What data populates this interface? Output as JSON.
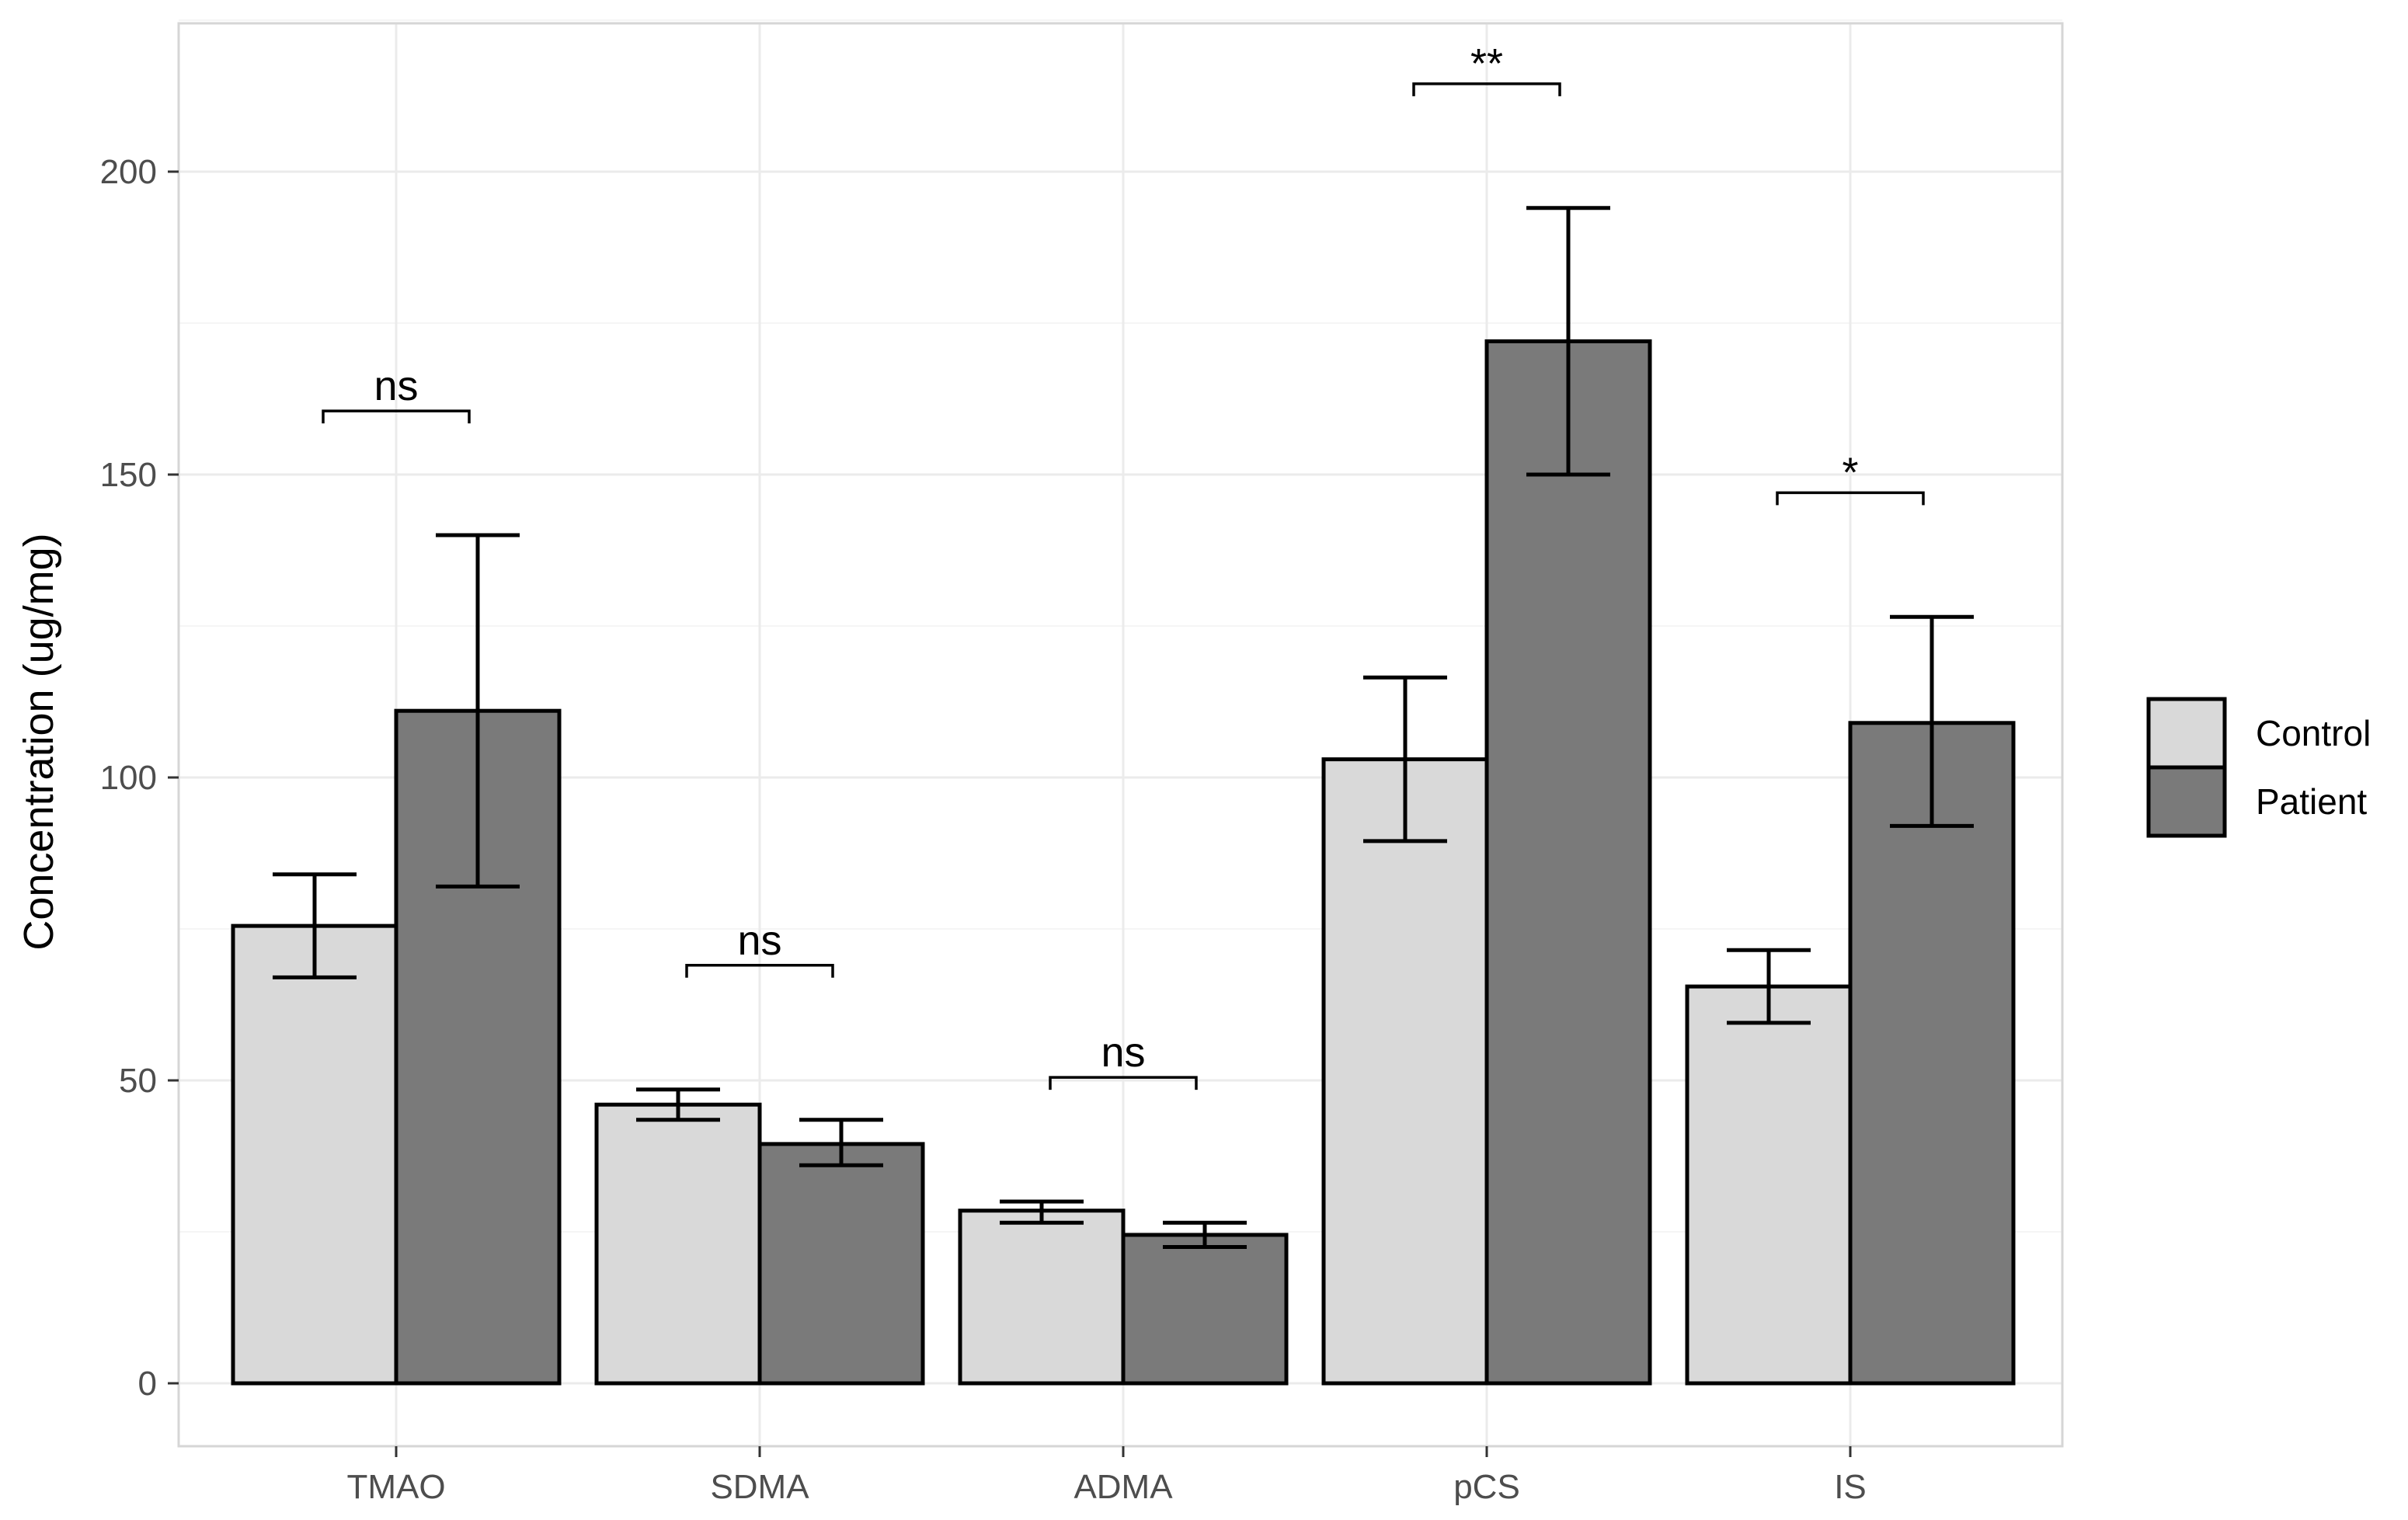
{
  "chart_data": {
    "type": "bar",
    "title": "",
    "xlabel": "",
    "ylabel": "Concentration (ug/mg)",
    "ylim": [
      0,
      225
    ],
    "yticks": [
      0,
      50,
      100,
      150,
      200
    ],
    "grid": true,
    "categories": [
      "TMAO",
      "SDMA",
      "ADMA",
      "pCS",
      "IS"
    ],
    "series": [
      {
        "name": "Control",
        "color": "#d9d9d9",
        "values": [
          75.5,
          46,
          28.5,
          103,
          65.5
        ],
        "error_low": [
          67,
          43.5,
          26.5,
          89.5,
          59.5
        ],
        "error_high": [
          84,
          48.5,
          30,
          116.5,
          71.5
        ]
      },
      {
        "name": "Patient",
        "color": "#7a7a7a",
        "values": [
          111,
          39.5,
          24.5,
          172,
          109
        ],
        "error_low": [
          82,
          36,
          22.5,
          150,
          92
        ],
        "error_high": [
          140,
          43.5,
          26.5,
          194,
          126.5
        ]
      }
    ],
    "significance": [
      {
        "category": "TMAO",
        "label": "ns",
        "y": 160.5
      },
      {
        "category": "SDMA",
        "label": "ns",
        "y": 69
      },
      {
        "category": "ADMA",
        "label": "ns",
        "y": 50.5
      },
      {
        "category": "pCS",
        "label": "**",
        "y": 214.5
      },
      {
        "category": "IS",
        "label": "*",
        "y": 147
      }
    ],
    "legend": {
      "position": "right",
      "entries": [
        "Control",
        "Patient"
      ]
    }
  },
  "colors": {
    "control": "#d9d9d9",
    "patient": "#7a7a7a",
    "grid_major": "#ebebeb",
    "grid_minor": "#f5f5f5",
    "panel_border": "#d6d6d6"
  }
}
